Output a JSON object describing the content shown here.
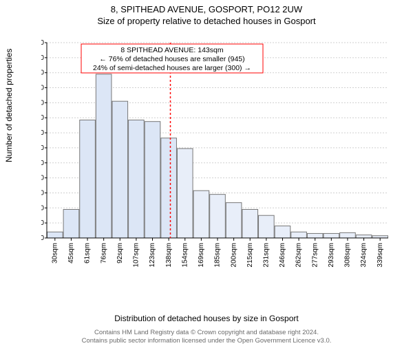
{
  "title_main": "8, SPITHEAD AVENUE, GOSPORT, PO12 2UW",
  "title_sub": "Size of property relative to detached houses in Gosport",
  "chart": {
    "type": "histogram",
    "ylabel": "Number of detached properties",
    "xlabel": "Distribution of detached houses by size in Gosport",
    "ylim": [
      0,
      260
    ],
    "ytick_step": 20,
    "categories": [
      "30sqm",
      "45sqm",
      "61sqm",
      "76sqm",
      "92sqm",
      "107sqm",
      "123sqm",
      "138sqm",
      "154sqm",
      "169sqm",
      "185sqm",
      "200sqm",
      "215sqm",
      "231sqm",
      "246sqm",
      "262sqm",
      "277sqm",
      "293sqm",
      "308sqm",
      "324sqm",
      "339sqm"
    ],
    "values": [
      8,
      38,
      157,
      218,
      182,
      157,
      155,
      133,
      119,
      63,
      58,
      47,
      38,
      30,
      16,
      8,
      6,
      6,
      7,
      4,
      3
    ],
    "bar_fill_left": "#dce6f6",
    "bar_fill_right": "#e8eef9",
    "bar_border": "#777777",
    "grid_color": "#cfcfcf",
    "background_color": "#ffffff",
    "axis_color": "#000000",
    "tick_fontsize": 10,
    "label_fontsize": 12,
    "title_fontsize": 13,
    "marker_index": 7.6,
    "marker_color": "#ff0000",
    "annotation": {
      "lines": [
        "8 SPITHEAD AVENUE: 143sqm",
        "← 76% of detached houses are smaller (945)",
        "24% of semi-detached houses are larger (300) →"
      ],
      "border_color": "#ff0000",
      "text_color": "#000000",
      "fontsize": 10.5
    }
  },
  "footer_line1": "Contains HM Land Registry data © Crown copyright and database right 2024.",
  "footer_line2": "Contains public sector information licensed under the Open Government Licence v3.0."
}
